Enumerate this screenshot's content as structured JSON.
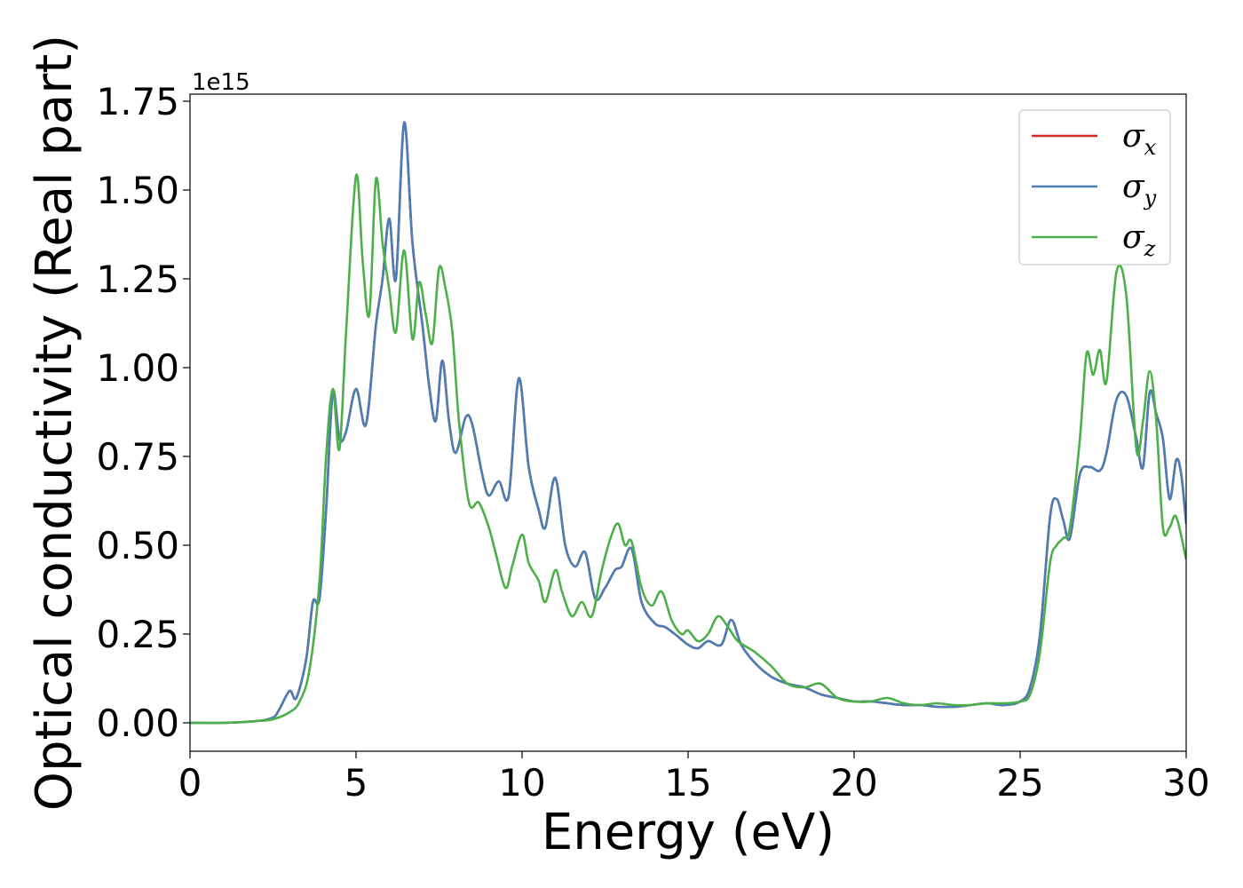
{
  "chart_data": {
    "type": "line",
    "xlabel": "Energy (eV)",
    "ylabel": "Optical conductivity (Real part)",
    "y_offset_label": "1e15",
    "xlim": [
      0,
      30
    ],
    "ylim": [
      -0.08,
      1.77
    ],
    "xticks": [
      0,
      5,
      10,
      15,
      20,
      25,
      30
    ],
    "xtick_labels": [
      "0",
      "5",
      "10",
      "15",
      "20",
      "25",
      "30"
    ],
    "yticks": [
      0.0,
      0.25,
      0.5,
      0.75,
      1.0,
      1.25,
      1.5,
      1.75
    ],
    "ytick_labels": [
      "0.00",
      "0.25",
      "0.50",
      "0.75",
      "1.00",
      "1.25",
      "1.50",
      "1.75"
    ],
    "grid": false,
    "legend_position": "top-right",
    "series": [
      {
        "name": "σ",
        "sub": "x",
        "color": "#d62728",
        "x": [
          0,
          1,
          2,
          2.5,
          2.7,
          3.0,
          3.2,
          3.5,
          3.7,
          3.9,
          4.1,
          4.3,
          4.5,
          4.7,
          5.0,
          5.3,
          5.6,
          5.8,
          6.0,
          6.2,
          6.45,
          6.7,
          7.0,
          7.2,
          7.4,
          7.6,
          7.8,
          8.0,
          8.3,
          8.5,
          8.8,
          9.0,
          9.3,
          9.6,
          9.9,
          10.2,
          10.5,
          10.7,
          11.0,
          11.3,
          11.6,
          11.9,
          12.2,
          12.5,
          12.8,
          13.0,
          13.3,
          13.6,
          14.0,
          14.3,
          14.6,
          15.0,
          15.3,
          15.6,
          16.0,
          16.3,
          16.6,
          17.0,
          17.5,
          18.0,
          18.5,
          19.0,
          19.5,
          20.0,
          20.5,
          21.0,
          21.5,
          22.0,
          22.5,
          23.0,
          23.5,
          24.0,
          24.5,
          25.0,
          25.3,
          25.6,
          25.9,
          26.1,
          26.3,
          26.5,
          26.8,
          27.1,
          27.4,
          27.6,
          27.9,
          28.2,
          28.5,
          28.7,
          28.9,
          29.1,
          29.3,
          29.5,
          29.7,
          29.85,
          30.0
        ],
        "y": [
          0.0,
          0.0,
          0.005,
          0.015,
          0.04,
          0.09,
          0.07,
          0.18,
          0.34,
          0.35,
          0.6,
          0.93,
          0.8,
          0.82,
          0.94,
          0.84,
          1.12,
          1.25,
          1.42,
          1.25,
          1.69,
          1.35,
          1.12,
          0.95,
          0.85,
          1.02,
          0.85,
          0.76,
          0.86,
          0.84,
          0.7,
          0.64,
          0.68,
          0.64,
          0.97,
          0.72,
          0.6,
          0.55,
          0.69,
          0.5,
          0.44,
          0.48,
          0.35,
          0.38,
          0.43,
          0.44,
          0.49,
          0.34,
          0.28,
          0.27,
          0.25,
          0.22,
          0.21,
          0.23,
          0.22,
          0.29,
          0.22,
          0.17,
          0.13,
          0.11,
          0.1,
          0.08,
          0.07,
          0.06,
          0.06,
          0.055,
          0.05,
          0.05,
          0.045,
          0.045,
          0.05,
          0.055,
          0.05,
          0.06,
          0.1,
          0.25,
          0.58,
          0.63,
          0.57,
          0.52,
          0.7,
          0.72,
          0.71,
          0.76,
          0.91,
          0.92,
          0.8,
          0.72,
          0.93,
          0.87,
          0.8,
          0.63,
          0.74,
          0.7,
          0.56
        ]
      },
      {
        "name": "σ",
        "sub": "y",
        "color": "#4a7eb5",
        "x": [
          0,
          1,
          2,
          2.5,
          2.7,
          3.0,
          3.2,
          3.5,
          3.7,
          3.9,
          4.1,
          4.3,
          4.5,
          4.7,
          5.0,
          5.3,
          5.6,
          5.8,
          6.0,
          6.2,
          6.45,
          6.7,
          7.0,
          7.2,
          7.4,
          7.6,
          7.8,
          8.0,
          8.3,
          8.5,
          8.8,
          9.0,
          9.3,
          9.6,
          9.9,
          10.2,
          10.5,
          10.7,
          11.0,
          11.3,
          11.6,
          11.9,
          12.2,
          12.5,
          12.8,
          13.0,
          13.3,
          13.6,
          14.0,
          14.3,
          14.6,
          15.0,
          15.3,
          15.6,
          16.0,
          16.3,
          16.6,
          17.0,
          17.5,
          18.0,
          18.5,
          19.0,
          19.5,
          20.0,
          20.5,
          21.0,
          21.5,
          22.0,
          22.5,
          23.0,
          23.5,
          24.0,
          24.5,
          25.0,
          25.3,
          25.6,
          25.9,
          26.1,
          26.3,
          26.5,
          26.8,
          27.1,
          27.4,
          27.6,
          27.9,
          28.2,
          28.5,
          28.7,
          28.9,
          29.1,
          29.3,
          29.5,
          29.7,
          29.85,
          30.0
        ],
        "y": [
          0.0,
          0.0,
          0.005,
          0.015,
          0.04,
          0.09,
          0.07,
          0.18,
          0.34,
          0.35,
          0.6,
          0.93,
          0.8,
          0.82,
          0.94,
          0.84,
          1.12,
          1.25,
          1.42,
          1.25,
          1.69,
          1.35,
          1.12,
          0.95,
          0.85,
          1.02,
          0.85,
          0.76,
          0.86,
          0.84,
          0.7,
          0.64,
          0.68,
          0.64,
          0.97,
          0.72,
          0.6,
          0.55,
          0.69,
          0.5,
          0.44,
          0.48,
          0.35,
          0.38,
          0.43,
          0.44,
          0.49,
          0.34,
          0.28,
          0.27,
          0.25,
          0.22,
          0.21,
          0.23,
          0.22,
          0.29,
          0.22,
          0.17,
          0.13,
          0.11,
          0.1,
          0.08,
          0.07,
          0.06,
          0.06,
          0.055,
          0.05,
          0.05,
          0.045,
          0.045,
          0.05,
          0.055,
          0.05,
          0.06,
          0.1,
          0.25,
          0.58,
          0.63,
          0.57,
          0.52,
          0.7,
          0.72,
          0.71,
          0.76,
          0.91,
          0.92,
          0.8,
          0.72,
          0.93,
          0.87,
          0.8,
          0.63,
          0.74,
          0.7,
          0.56
        ]
      },
      {
        "name": "σ",
        "sub": "z",
        "color": "#4daf4a",
        "x": [
          0,
          1,
          2,
          2.5,
          3.0,
          3.3,
          3.6,
          3.9,
          4.1,
          4.3,
          4.5,
          4.7,
          5.0,
          5.2,
          5.4,
          5.6,
          5.8,
          6.0,
          6.2,
          6.45,
          6.7,
          6.9,
          7.1,
          7.3,
          7.5,
          7.7,
          7.9,
          8.1,
          8.4,
          8.7,
          9.0,
          9.2,
          9.5,
          9.7,
          10.0,
          10.2,
          10.5,
          10.7,
          11.0,
          11.2,
          11.5,
          11.8,
          12.1,
          12.4,
          12.7,
          12.9,
          13.1,
          13.3,
          13.6,
          13.9,
          14.2,
          14.5,
          14.8,
          15.0,
          15.3,
          15.6,
          15.9,
          16.2,
          16.5,
          17.0,
          17.5,
          18.0,
          18.5,
          19.0,
          19.5,
          20.0,
          20.5,
          21.0,
          21.5,
          22.0,
          22.5,
          23.0,
          23.5,
          24.0,
          24.5,
          25.0,
          25.3,
          25.6,
          25.9,
          26.1,
          26.3,
          26.5,
          26.8,
          27.0,
          27.2,
          27.4,
          27.6,
          27.9,
          28.2,
          28.5,
          28.7,
          28.9,
          29.1,
          29.3,
          29.5,
          29.7,
          30.0
        ],
        "y": [
          0.0,
          0.0,
          0.005,
          0.01,
          0.03,
          0.06,
          0.15,
          0.4,
          0.75,
          0.94,
          0.77,
          1.1,
          1.54,
          1.3,
          1.15,
          1.53,
          1.35,
          1.22,
          1.1,
          1.33,
          1.08,
          1.24,
          1.15,
          1.07,
          1.28,
          1.22,
          1.1,
          0.85,
          0.62,
          0.62,
          0.55,
          0.48,
          0.38,
          0.44,
          0.53,
          0.45,
          0.4,
          0.34,
          0.43,
          0.37,
          0.3,
          0.34,
          0.3,
          0.43,
          0.53,
          0.56,
          0.5,
          0.51,
          0.38,
          0.33,
          0.37,
          0.29,
          0.25,
          0.26,
          0.23,
          0.25,
          0.3,
          0.27,
          0.23,
          0.2,
          0.16,
          0.11,
          0.1,
          0.11,
          0.07,
          0.06,
          0.06,
          0.07,
          0.055,
          0.05,
          0.055,
          0.05,
          0.05,
          0.055,
          0.055,
          0.06,
          0.08,
          0.2,
          0.45,
          0.5,
          0.52,
          0.55,
          0.8,
          1.04,
          0.98,
          1.05,
          0.96,
          1.27,
          1.2,
          0.77,
          0.85,
          0.99,
          0.85,
          0.55,
          0.55,
          0.58,
          0.46
        ]
      }
    ]
  }
}
